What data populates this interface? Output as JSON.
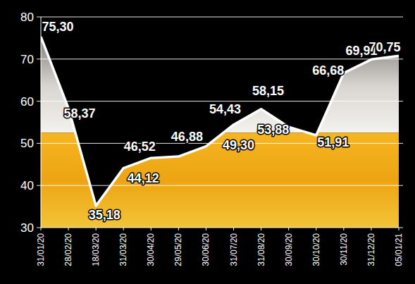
{
  "chart_data": {
    "type": "line",
    "categories": [
      "31/01/20",
      "28/02/20",
      "18/03/20",
      "31/03/20",
      "30/04/20",
      "29/05/20",
      "30/06/20",
      "31/07/20",
      "31/08/20",
      "30/09/20",
      "30/10/20",
      "30/11/20",
      "31/12/20",
      "05/01/21"
    ],
    "values": [
      75.3,
      58.37,
      35.18,
      44.12,
      46.52,
      46.88,
      49.3,
      54.43,
      58.15,
      53.88,
      51.91,
      66.68,
      69.91,
      70.75
    ],
    "value_labels": [
      "75,30",
      "58,37",
      "35,18",
      "44,12",
      "46,52",
      "46,88",
      "49,30",
      "54,43",
      "58,15",
      "53,88",
      "51,91",
      "66,68",
      "69,91",
      "70,75"
    ],
    "color": "#ffffff",
    "ylim": [
      30,
      80
    ],
    "yticks": [
      30,
      40,
      50,
      60,
      70,
      80
    ],
    "grid": true,
    "data_labels": true
  }
}
